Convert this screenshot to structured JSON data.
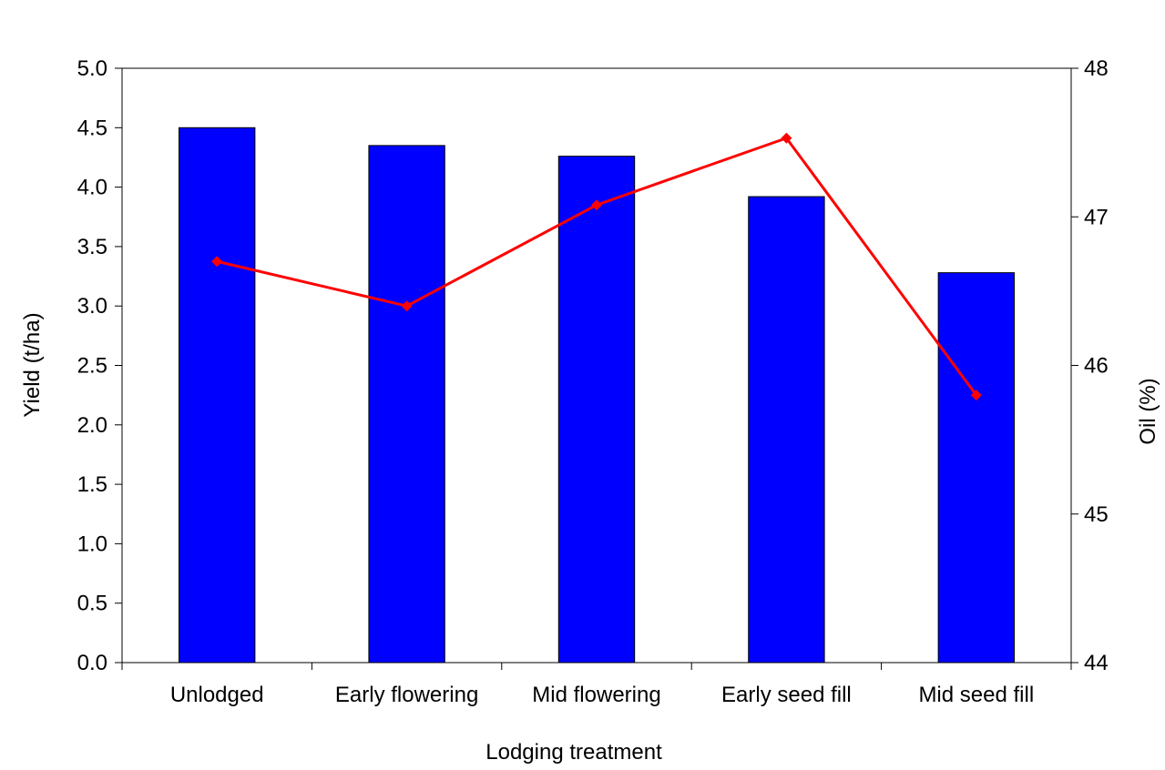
{
  "chart_data": {
    "type": "bar",
    "title": "",
    "xlabel": "Lodging treatment",
    "ylabel": "Yield (t/ha)",
    "y2label": "Oil (%)",
    "categories": [
      "Unlodged",
      "Early flowering",
      "Mid flowering",
      "Early seed fill",
      "Mid seed fill"
    ],
    "ylim": [
      0,
      5
    ],
    "yticks": [
      "0.0",
      "0.5",
      "1.0",
      "1.5",
      "2.0",
      "2.5",
      "3.0",
      "3.5",
      "4.0",
      "4.5",
      "5.0"
    ],
    "y2lim": [
      44,
      48
    ],
    "y2ticks": [
      "44",
      "45",
      "46",
      "47",
      "48"
    ],
    "grid": false,
    "legend": "none",
    "series": [
      {
        "type": "bar",
        "axis": "left",
        "color": "#0000ff",
        "values": [
          4.5,
          4.35,
          4.26,
          3.92,
          3.28
        ]
      },
      {
        "type": "line",
        "axis": "right",
        "color": "#ff0000",
        "marker": "diamond",
        "values": [
          46.7,
          46.4,
          47.08,
          47.53,
          45.8
        ]
      }
    ]
  }
}
